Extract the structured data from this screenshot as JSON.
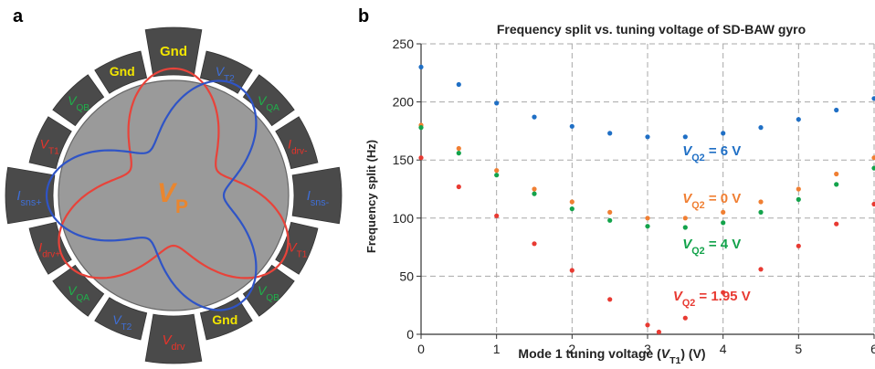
{
  "panel_a": {
    "label": "a",
    "center_label": {
      "main": "V",
      "sub": "P"
    },
    "electrodes": [
      {
        "name": "Gnd",
        "color": "#f2e500"
      },
      {
        "name": "V",
        "sub": "T2",
        "color": "#3f6fd6"
      },
      {
        "name": "V",
        "sub": "QA",
        "color": "#1fb04a"
      },
      {
        "name": "I",
        "sub": "drv-",
        "color": "#e8332a"
      },
      {
        "name": "I",
        "sub": "sns-",
        "color": "#3f6fd6"
      },
      {
        "name": "V",
        "sub": "T1",
        "color": "#e8332a"
      },
      {
        "name": "V",
        "sub": "QB",
        "color": "#1fb04a"
      },
      {
        "name": "Gnd",
        "color": "#f2e500"
      },
      {
        "name": "V",
        "sub": "drv",
        "color": "#e8332a"
      },
      {
        "name": "V",
        "sub": "T2",
        "color": "#3f6fd6"
      },
      {
        "name": "V",
        "sub": "QA",
        "color": "#1fb04a"
      },
      {
        "name": "I",
        "sub": "drv+",
        "color": "#e8332a"
      },
      {
        "name": "I",
        "sub": "sns+",
        "color": "#3f6fd6"
      },
      {
        "name": "V",
        "sub": "T1",
        "color": "#e8332a"
      },
      {
        "name": "V",
        "sub": "QB",
        "color": "#1fb04a"
      },
      {
        "name": "Gnd",
        "color": "#f2e500"
      }
    ],
    "mode_colors": [
      "#e8433a",
      "#2f54c6"
    ]
  },
  "panel_b": {
    "label": "b"
  },
  "chart_data": {
    "type": "scatter",
    "title": "Frequency split vs. tuning voltage of SD-BAW gyro",
    "xlabel": {
      "prefix": "Mode 1 tuning voltage (",
      "main": "V",
      "sub": "T1",
      "suffix": ")  (V)"
    },
    "ylabel": "Frequency split (Hz)",
    "xlim": [
      0,
      6
    ],
    "ylim": [
      0,
      250
    ],
    "xticks": [
      "0",
      "1",
      "2",
      "3",
      "4",
      "5",
      "6"
    ],
    "yticks": [
      "0",
      "50",
      "100",
      "150",
      "200",
      "250"
    ],
    "grid": true,
    "series": [
      {
        "name": "V_Q2 = 6 V",
        "label": {
          "main": "V",
          "sub": "Q2",
          "rest": " = 6 V"
        },
        "color": "#1f6fc5",
        "x": [
          0,
          0.5,
          1,
          1.5,
          2,
          2.5,
          3,
          3.5,
          4,
          4.5,
          5,
          5.5,
          6
        ],
        "y": [
          230,
          215,
          199,
          187,
          179,
          173,
          170,
          170,
          173,
          178,
          185,
          193,
          203
        ]
      },
      {
        "name": "V_Q2 = 0 V",
        "label": {
          "main": "V",
          "sub": "Q2",
          "rest": " = 0 V"
        },
        "color": "#f07f33",
        "x": [
          0,
          0.5,
          1,
          1.5,
          2,
          2.5,
          3,
          3.5,
          4,
          4.5,
          5,
          5.5,
          6
        ],
        "y": [
          180,
          160,
          141,
          125,
          114,
          105,
          100,
          100,
          105,
          114,
          125,
          138,
          152
        ]
      },
      {
        "name": "V_Q2 = 4 V",
        "label": {
          "main": "V",
          "sub": "Q2",
          "rest": " = 4 V"
        },
        "color": "#13a34b",
        "x": [
          0,
          0.5,
          1,
          1.5,
          2,
          2.5,
          3,
          3.5,
          4,
          4.5,
          5,
          5.5,
          6
        ],
        "y": [
          178,
          156,
          137,
          121,
          108,
          98,
          93,
          92,
          96,
          105,
          116,
          129,
          143
        ]
      },
      {
        "name": "V_Q2 = 1.95 V",
        "label": {
          "main": "V",
          "sub": "Q2",
          "rest": " = 1.95 V"
        },
        "color": "#e83a32",
        "x": [
          0,
          0.5,
          1,
          1.5,
          2,
          2.5,
          3,
          3.15,
          3.5,
          4,
          4.5,
          5,
          5.5,
          6
        ],
        "y": [
          152,
          127,
          102,
          78,
          55,
          30,
          8,
          2,
          14,
          36,
          56,
          76,
          95,
          112
        ]
      }
    ]
  }
}
